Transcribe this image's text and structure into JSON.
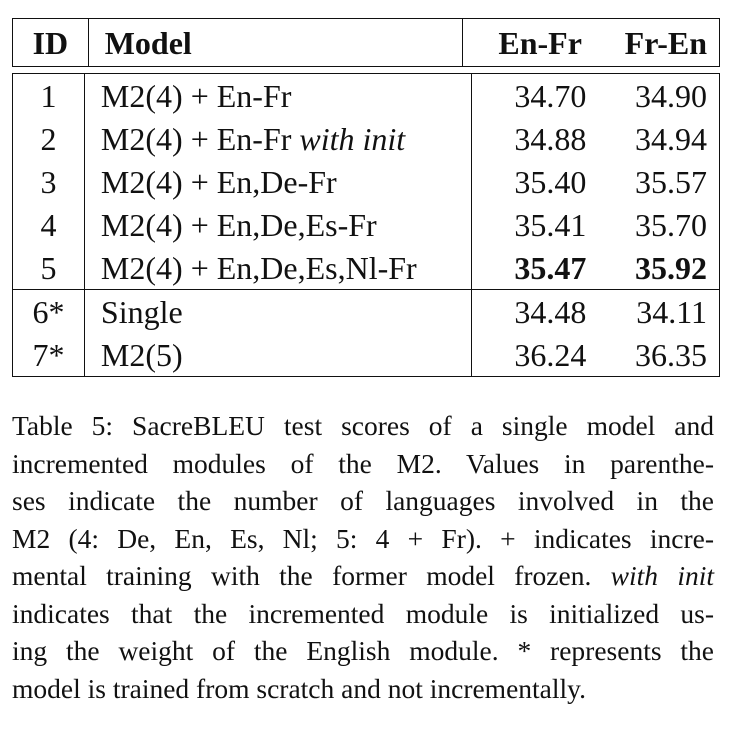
{
  "table": {
    "headers": [
      "ID",
      "Model",
      "En-Fr",
      "Fr-En"
    ],
    "rows": [
      {
        "id": "1",
        "model": "M2(4) + En-Fr",
        "model_suffix": "",
        "en_fr": "34.70",
        "fr_en": "34.90",
        "bold": false
      },
      {
        "id": "2",
        "model": "M2(4) + En-Fr ",
        "model_suffix": "with init",
        "en_fr": "34.88",
        "fr_en": "34.94",
        "bold": false
      },
      {
        "id": "3",
        "model": "M2(4) + En,De-Fr",
        "model_suffix": "",
        "en_fr": "35.40",
        "fr_en": "35.57",
        "bold": false
      },
      {
        "id": "4",
        "model": "M2(4) + En,De,Es-Fr",
        "model_suffix": "",
        "en_fr": "35.41",
        "fr_en": "35.70",
        "bold": false
      },
      {
        "id": "5",
        "model": "M2(4) + En,De,Es,Nl-Fr",
        "model_suffix": "",
        "en_fr": "35.47",
        "fr_en": "35.92",
        "bold": true
      },
      {
        "id": "6*",
        "model": "Single",
        "model_suffix": "",
        "en_fr": "34.48",
        "fr_en": "34.11",
        "bold": false
      },
      {
        "id": "7*",
        "model": "M2(5)",
        "model_suffix": "",
        "en_fr": "36.24",
        "fr_en": "36.35",
        "bold": false
      }
    ]
  },
  "caption": {
    "l1": "Table 5: SacreBLEU test scores of a single model and",
    "l2": "incremented modules of the M2. Values in parenthe-",
    "l3": "ses indicate the number of languages involved in the",
    "l4": "M2 (4: De, En, Es, Nl; 5: 4 + Fr). + indicates incre-",
    "l5a": "mental training with the former model frozen. ",
    "l5b": "with init",
    "l6": "indicates that the incremented module is initialized us-",
    "l7": "ing the weight of the English module. * represents the",
    "l8": "model is trained from scratch and not incrementally."
  }
}
